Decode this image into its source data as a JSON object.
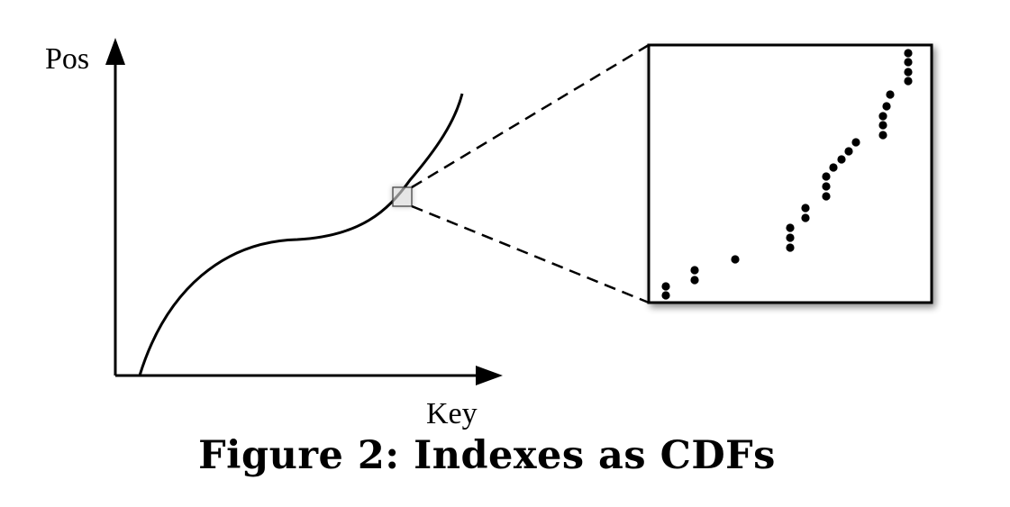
{
  "diagram": {
    "y_axis_label": "Pos",
    "x_axis_label": "Key",
    "caption": "Figure 2: Indexes as CDFs"
  },
  "colors": {
    "ink": "#000000",
    "background": "#ffffff",
    "shadow": "#7a7a7a",
    "zoom_marker_fill": "#e6e6e6"
  }
}
